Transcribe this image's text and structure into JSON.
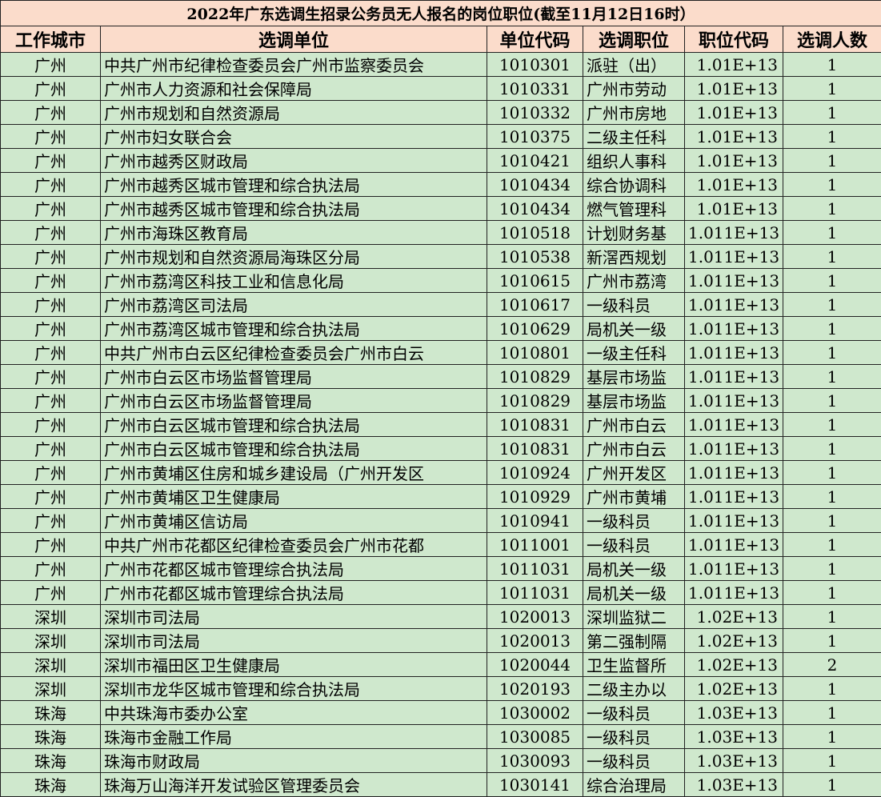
{
  "title": "2022年广东选调生招录公务员无人报名的岗位职位(截至11月12日16时）",
  "colors": {
    "header_bg": "#fbdccb",
    "row_bg": "#cfe8cd"
  },
  "columns": [
    "工作城市",
    "选调单位",
    "单位代码",
    "选调职位",
    "职位代码",
    "选调人数"
  ],
  "rows": [
    [
      "广州",
      "中共广州市纪律检查委员会广州市监察委员会",
      "1010301",
      "派驻（出）",
      "1.01E+13",
      "1"
    ],
    [
      "广州",
      "广州市人力资源和社会保障局",
      "1010331",
      "广州市劳动",
      "1.01E+13",
      "1"
    ],
    [
      "广州",
      "广州市规划和自然资源局",
      "1010332",
      "广州市房地",
      "1.01E+13",
      "1"
    ],
    [
      "广州",
      "广州市妇女联合会",
      "1010375",
      "二级主任科",
      "1.01E+13",
      "1"
    ],
    [
      "广州",
      "广州市越秀区财政局",
      "1010421",
      "组织人事科",
      "1.01E+13",
      "1"
    ],
    [
      "广州",
      "广州市越秀区城市管理和综合执法局",
      "1010434",
      "综合协调科",
      "1.01E+13",
      "1"
    ],
    [
      "广州",
      "广州市越秀区城市管理和综合执法局",
      "1010434",
      "燃气管理科",
      "1.01E+13",
      "1"
    ],
    [
      "广州",
      "广州市海珠区教育局",
      "1010518",
      "计划财务基",
      "1.011E+13",
      "1"
    ],
    [
      "广州",
      "广州市规划和自然资源局海珠区分局",
      "1010538",
      "新滘西规划",
      "1.011E+13",
      "1"
    ],
    [
      "广州",
      "广州市荔湾区科技工业和信息化局",
      "1010615",
      "广州市荔湾",
      "1.011E+13",
      "1"
    ],
    [
      "广州",
      "广州市荔湾区司法局",
      "1010617",
      "一级科员",
      "1.011E+13",
      "1"
    ],
    [
      "广州",
      "广州市荔湾区城市管理和综合执法局",
      "1010629",
      "局机关一级",
      "1.011E+13",
      "1"
    ],
    [
      "广州",
      "中共广州市白云区纪律检查委员会广州市白云",
      "1010801",
      "一级主任科",
      "1.011E+13",
      "1"
    ],
    [
      "广州",
      "广州市白云区市场监督管理局",
      "1010829",
      "基层市场监",
      "1.011E+13",
      "1"
    ],
    [
      "广州",
      "广州市白云区市场监督管理局",
      "1010829",
      "基层市场监",
      "1.011E+13",
      "1"
    ],
    [
      "广州",
      "广州市白云区城市管理和综合执法局",
      "1010831",
      "广州市白云",
      "1.011E+13",
      "1"
    ],
    [
      "广州",
      "广州市白云区城市管理和综合执法局",
      "1010831",
      "广州市白云",
      "1.011E+13",
      "1"
    ],
    [
      "广州",
      "广州市黄埔区住房和城乡建设局（广州开发区",
      "1010924",
      "广州开发区",
      "1.011E+13",
      "1"
    ],
    [
      "广州",
      "广州市黄埔区卫生健康局",
      "1010929",
      "广州市黄埔",
      "1.011E+13",
      "1"
    ],
    [
      "广州",
      "广州市黄埔区信访局",
      "1010941",
      "一级科员",
      "1.011E+13",
      "1"
    ],
    [
      "广州",
      "中共广州市花都区纪律检查委员会广州市花都",
      "1011001",
      "一级科员",
      "1.011E+13",
      "1"
    ],
    [
      "广州",
      "广州市花都区城市管理综合执法局",
      "1011031",
      "局机关一级",
      "1.011E+13",
      "1"
    ],
    [
      "广州",
      "广州市花都区城市管理综合执法局",
      "1011031",
      "局机关一级",
      "1.011E+13",
      "1"
    ],
    [
      "深圳",
      "深圳市司法局",
      "1020013",
      "深圳监狱二",
      "1.02E+13",
      "1"
    ],
    [
      "深圳",
      "深圳市司法局",
      "1020013",
      "第二强制隔",
      "1.02E+13",
      "1"
    ],
    [
      "深圳",
      "深圳市福田区卫生健康局",
      "1020044",
      "卫生监督所",
      "1.02E+13",
      "2"
    ],
    [
      "深圳",
      "深圳市龙华区城市管理和综合执法局",
      "1020193",
      "二级主办以",
      "1.02E+13",
      "1"
    ],
    [
      "珠海",
      "中共珠海市委办公室",
      "1030002",
      "一级科员",
      "1.03E+13",
      "1"
    ],
    [
      "珠海",
      "珠海市金融工作局",
      "1030085",
      "一级科员",
      "1.03E+13",
      "1"
    ],
    [
      "珠海",
      "珠海市财政局",
      "1030093",
      "一级科员",
      "1.03E+13",
      "1"
    ],
    [
      "珠海",
      "珠海万山海洋开发试验区管理委员会",
      "1030141",
      "综合治理局",
      "1.03E+13",
      "1"
    ]
  ]
}
